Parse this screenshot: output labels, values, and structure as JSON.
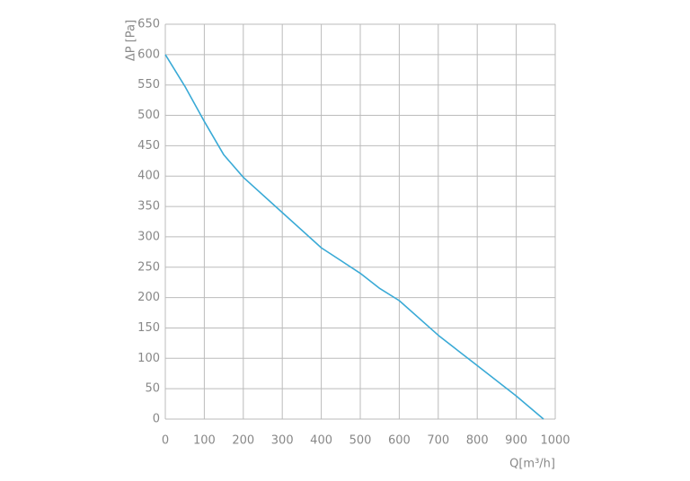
{
  "chart_data": {
    "type": "line",
    "x_label": "Q[m³/h]",
    "y_label": "ΔP [Pa]",
    "x": [
      0,
      50,
      100,
      150,
      200,
      300,
      400,
      500,
      550,
      600,
      700,
      800,
      900,
      970
    ],
    "series": [
      {
        "name": "ΔP",
        "color": "#3aaad6",
        "values": [
          600,
          548,
          490,
          435,
          398,
          340,
          282,
          240,
          215,
          195,
          138,
          88,
          38,
          0
        ]
      }
    ],
    "xlim": [
      0,
      1000
    ],
    "xticks": [
      0,
      100,
      200,
      300,
      400,
      500,
      600,
      700,
      800,
      900,
      1000
    ],
    "ylim": [
      0,
      650
    ],
    "yticks": [
      0,
      50,
      100,
      150,
      200,
      250,
      300,
      350,
      400,
      450,
      500,
      550,
      600,
      650
    ],
    "grid": true
  }
}
